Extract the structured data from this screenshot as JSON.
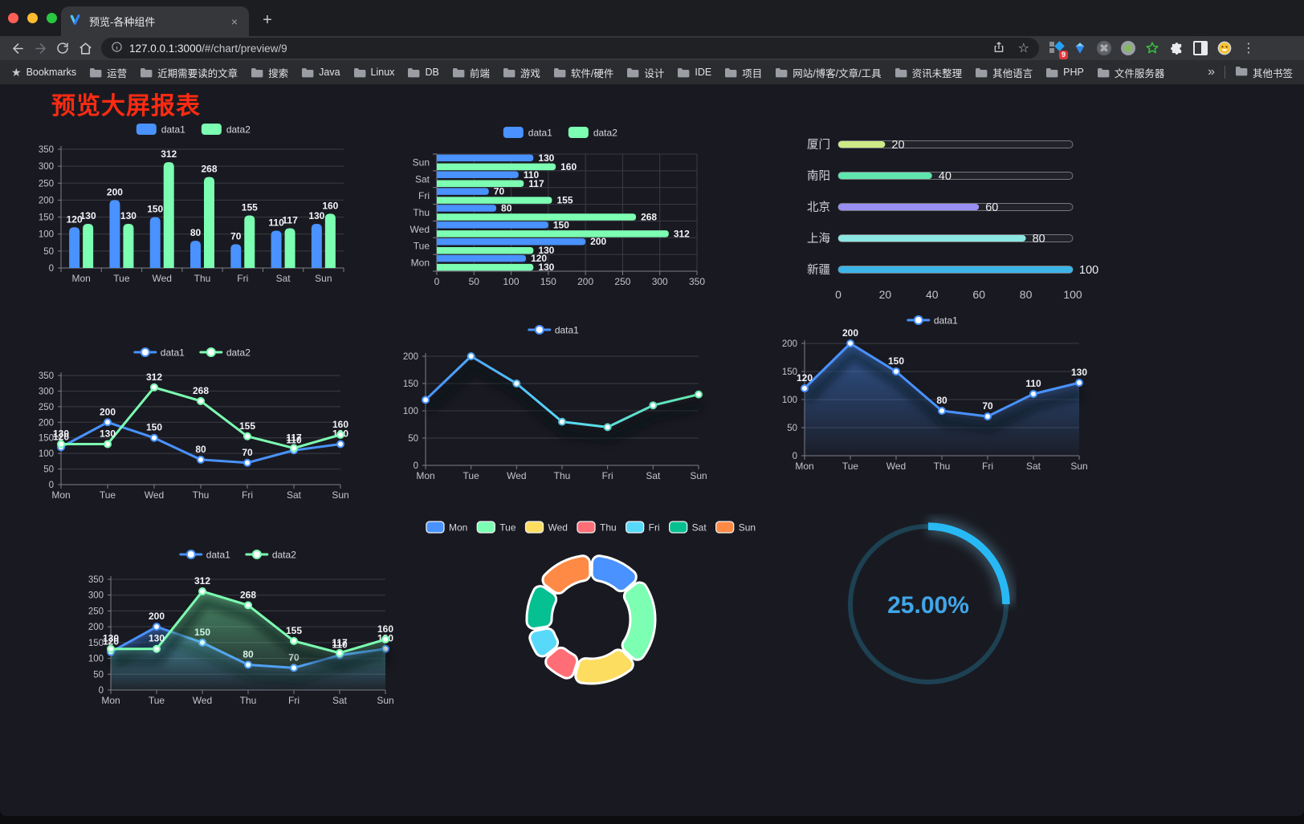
{
  "window": {
    "tab_title": "预览-各种组件",
    "new_tab_label": "+",
    "close_tab_label": "×",
    "url": {
      "host": "127.0.0.1:3000",
      "path": "/#/chart/preview/9"
    },
    "extensions_badge": "9",
    "menu_dots": "⋮",
    "bookmark_star": "★",
    "omni_star": "☆",
    "bookmarks_bar": {
      "label": "Bookmarks",
      "folders": [
        "运营",
        "近期需要读的文章",
        "搜索",
        "Java",
        "Linux",
        "DB",
        "前端",
        "游戏",
        "软件/硬件",
        "设计",
        "IDE",
        "项目",
        "网站/博客/文章/工具",
        "资讯未整理",
        "其他语言",
        "PHP",
        "文件服务器"
      ],
      "overflow": "»",
      "other": "其他书签"
    },
    "controls": {
      "close": "#ff5f57",
      "minimize": "#febc2e",
      "zoom": "#28c840"
    }
  },
  "page": {
    "title": "预览大屏报表",
    "title_color": "#ff2b12"
  },
  "theme": {
    "bg": "#191a21",
    "grid": "#3a3b44",
    "axis": "#7d7e88",
    "tick_text": "#c2c3cd",
    "value_label": "#f2f3f6",
    "legend_text": "#d6d7de",
    "series_blue": "#4992ff",
    "series_green": "#7cffb2"
  },
  "chart_data": [
    {
      "id": "bar-grouped",
      "type": "bar",
      "orientation": "vertical",
      "categories": [
        "Mon",
        "Tue",
        "Wed",
        "Thu",
        "Fri",
        "Sat",
        "Sun"
      ],
      "series": [
        {
          "name": "data1",
          "color": "#4992ff",
          "values": [
            120,
            200,
            150,
            80,
            70,
            110,
            130
          ]
        },
        {
          "name": "data2",
          "color": "#7cffb2",
          "values": [
            130,
            130,
            312,
            268,
            155,
            117,
            160
          ]
        }
      ],
      "ylim": [
        0,
        350
      ],
      "ytick_step": 50,
      "legend_position": "top",
      "grid": true
    },
    {
      "id": "bar-horizontal",
      "type": "bar",
      "orientation": "horizontal",
      "categories": [
        "Mon",
        "Tue",
        "Wed",
        "Thu",
        "Fri",
        "Sat",
        "Sun"
      ],
      "series": [
        {
          "name": "data1",
          "color": "#4992ff",
          "values": [
            120,
            200,
            150,
            80,
            70,
            110,
            130
          ]
        },
        {
          "name": "data2",
          "color": "#7cffb2",
          "values": [
            130,
            130,
            312,
            268,
            155,
            117,
            160
          ]
        }
      ],
      "xlim": [
        0,
        350
      ],
      "xtick_step": 50,
      "legend_position": "top",
      "grid": true
    },
    {
      "id": "progress-bars",
      "type": "bar",
      "subtype": "progress",
      "max": 100,
      "items": [
        {
          "label": "厦门",
          "value": 20,
          "color": "#cdea86"
        },
        {
          "label": "南阳",
          "value": 40,
          "color": "#5fe6ad"
        },
        {
          "label": "北京",
          "value": 60,
          "color": "#998ff2"
        },
        {
          "label": "上海",
          "value": 80,
          "color": "#8ce6e2"
        },
        {
          "label": "新疆",
          "value": 100,
          "color": "#3cb4e8"
        }
      ],
      "ticks": [
        0,
        20,
        40,
        60,
        80,
        100
      ]
    },
    {
      "id": "line-two-series",
      "type": "line",
      "categories": [
        "Mon",
        "Tue",
        "Wed",
        "Thu",
        "Fri",
        "Sat",
        "Sun"
      ],
      "series": [
        {
          "name": "data1",
          "color": "#4992ff",
          "values": [
            120,
            200,
            150,
            80,
            70,
            110,
            130
          ]
        },
        {
          "name": "data2",
          "color": "#7cffb2",
          "values": [
            130,
            130,
            312,
            268,
            155,
            117,
            160
          ]
        }
      ],
      "ylim": [
        0,
        350
      ],
      "ytick_step": 50,
      "labels": true,
      "legend_position": "top"
    },
    {
      "id": "line-gradient",
      "type": "line",
      "categories": [
        "Mon",
        "Tue",
        "Wed",
        "Thu",
        "Fri",
        "Sat",
        "Sun"
      ],
      "series": [
        {
          "name": "data1",
          "color": "#4992ff",
          "gradient": [
            "#4992ff",
            "#58d9f9",
            "#63e8a8"
          ],
          "values": [
            120,
            200,
            150,
            80,
            70,
            110,
            130
          ]
        }
      ],
      "ylim": [
        0,
        200
      ],
      "ytick_step": 50,
      "labels": false,
      "shadow": true,
      "legend_position": "top"
    },
    {
      "id": "area-blue",
      "type": "area",
      "categories": [
        "Mon",
        "Tue",
        "Wed",
        "Thu",
        "Fri",
        "Sat",
        "Sun"
      ],
      "series": [
        {
          "name": "data1",
          "color": "#4992ff",
          "area": true,
          "values": [
            120,
            200,
            150,
            80,
            70,
            110,
            130
          ]
        }
      ],
      "ylim": [
        0,
        200
      ],
      "ytick_step": 50,
      "labels": true,
      "shadow": true,
      "legend_position": "top"
    },
    {
      "id": "area-two",
      "type": "area",
      "categories": [
        "Mon",
        "Tue",
        "Wed",
        "Thu",
        "Fri",
        "Sat",
        "Sun"
      ],
      "series": [
        {
          "name": "data1",
          "color": "#4992ff",
          "area": true,
          "values": [
            120,
            200,
            150,
            80,
            70,
            110,
            130
          ]
        },
        {
          "name": "data2",
          "color": "#7cffb2",
          "area": true,
          "values": [
            130,
            130,
            312,
            268,
            155,
            117,
            160
          ]
        }
      ],
      "ylim": [
        0,
        350
      ],
      "ytick_step": 50,
      "labels": true,
      "shadow": true,
      "legend_position": "top"
    },
    {
      "id": "donut",
      "type": "pie",
      "inner_radius": 0.61,
      "border_color": "#ffffff",
      "slices": [
        {
          "label": "Mon",
          "value": 120,
          "color": "#4992ff"
        },
        {
          "label": "Tue",
          "value": 200,
          "color": "#7cffb2"
        },
        {
          "label": "Wed",
          "value": 150,
          "color": "#fddd60"
        },
        {
          "label": "Thu",
          "value": 80,
          "color": "#ff6e76"
        },
        {
          "label": "Fri",
          "value": 70,
          "color": "#58d9f9"
        },
        {
          "label": "Sat",
          "value": 110,
          "color": "#05c091"
        },
        {
          "label": "Sun",
          "value": 130,
          "color": "#ff8a45"
        }
      ],
      "legend_position": "top"
    },
    {
      "id": "gauge",
      "type": "gauge",
      "value": 25,
      "max": 100,
      "display": "25.00%",
      "arc_color": "#28b9f5",
      "track_color": "#1d4152",
      "text_color": "#41a6e8"
    }
  ]
}
